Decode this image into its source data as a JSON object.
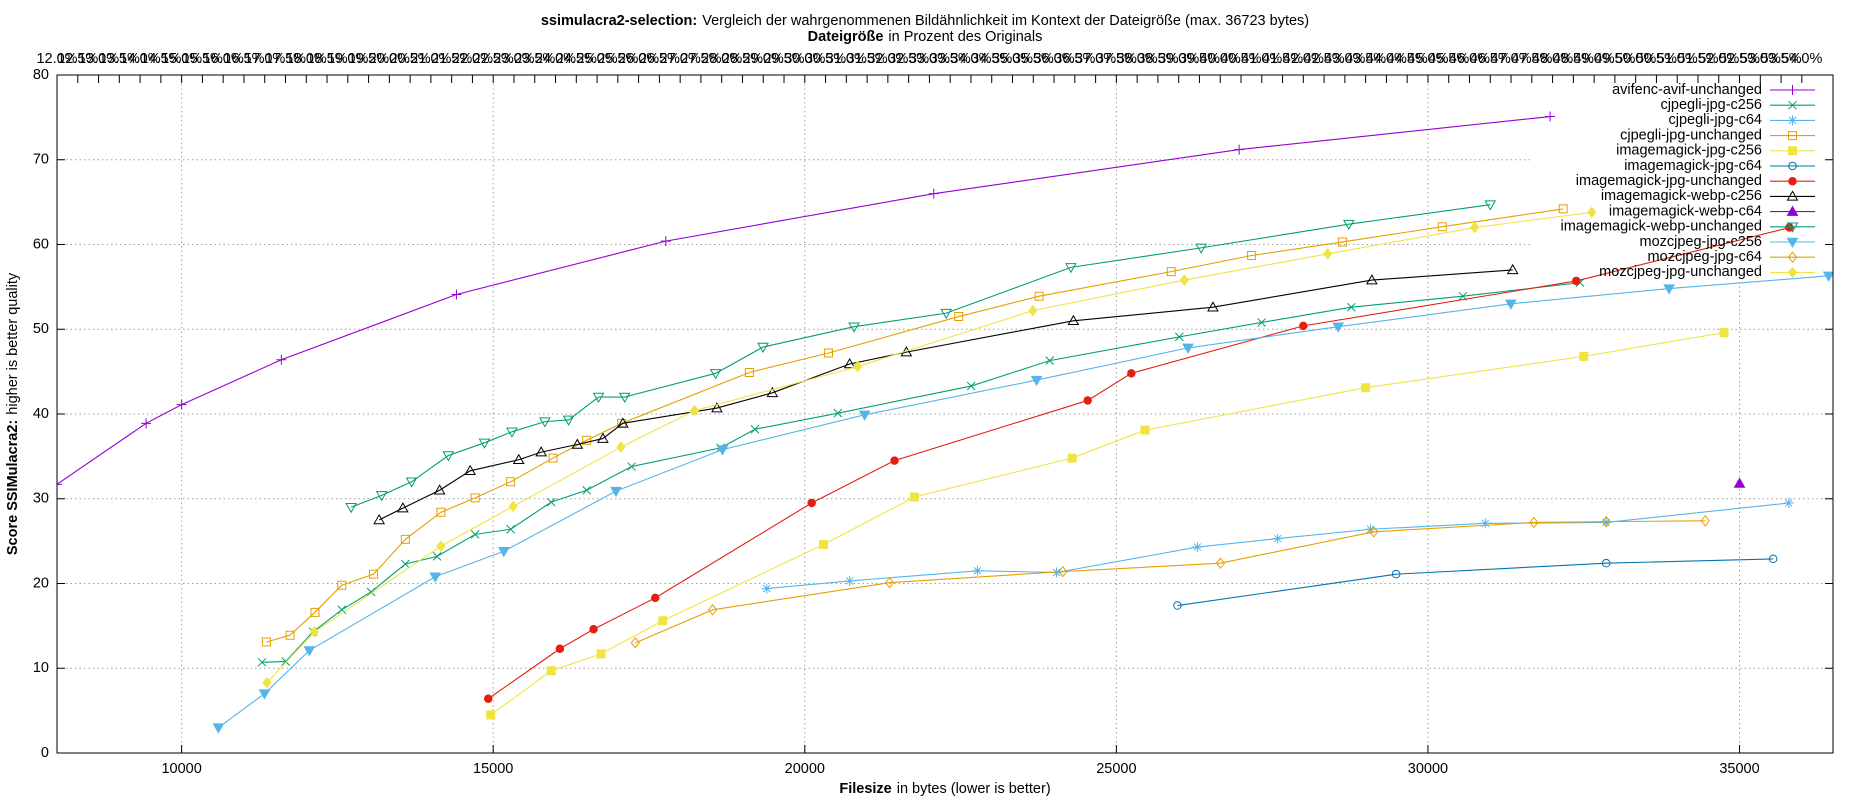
{
  "chart_data": {
    "type": "line",
    "title": {
      "bold": "ssimulacra2-selection:",
      "text": "Vergleich der wahrgenommenen Bildähnlichkeit im Kontext der Dateigröße (max. 36723 bytes)"
    },
    "x2label": {
      "bold": "Dateigröße",
      "text": "in Prozent des Originals"
    },
    "xlabel": {
      "bold": "Filesize",
      "text": "in bytes (lower is better)"
    },
    "ylabel": {
      "bold": "Score SSIMulacra2:",
      "text": "higher is better quality"
    },
    "xlim": [
      8000,
      36500
    ],
    "ylim": [
      0,
      80
    ],
    "x2lim": [
      12,
      54.75
    ],
    "xticks": [
      10000,
      15000,
      20000,
      25000,
      30000,
      35000
    ],
    "yticks": [
      0,
      10,
      20,
      30,
      40,
      50,
      60,
      70,
      80
    ],
    "x2ticks": [
      {
        "value": 12,
        "label": "12.0%"
      },
      {
        "value": 12.5,
        "label": "12.5%"
      },
      {
        "value": 13,
        "label": "13.0%"
      },
      {
        "value": 13.5,
        "label": "13.5%"
      },
      {
        "value": 14,
        "label": "14.0%"
      },
      {
        "value": 14.5,
        "label": "14.5%"
      },
      {
        "value": 15,
        "label": "15.0%"
      },
      {
        "value": 15.5,
        "label": "15.5%"
      },
      {
        "value": 16,
        "label": "16.0%"
      },
      {
        "value": 16.5,
        "label": "16.5%"
      },
      {
        "value": 17,
        "label": "17.0%"
      },
      {
        "value": 17.5,
        "label": "17.5%"
      },
      {
        "value": 18,
        "label": "18.0%"
      },
      {
        "value": 18.5,
        "label": "18.5%"
      },
      {
        "value": 19,
        "label": "19.0%"
      },
      {
        "value": 19.5,
        "label": "19.5%"
      },
      {
        "value": 20,
        "label": "20.0%"
      },
      {
        "value": 20.5,
        "label": "20.5%"
      },
      {
        "value": 21,
        "label": "21.0%"
      },
      {
        "value": 21.5,
        "label": "21.5%"
      },
      {
        "value": 22,
        "label": "22.0%"
      },
      {
        "value": 22.5,
        "label": "22.5%"
      },
      {
        "value": 23,
        "label": "23.0%"
      },
      {
        "value": 23.5,
        "label": "23.5%"
      },
      {
        "value": 24,
        "label": "24.0%"
      },
      {
        "value": 24.5,
        "label": "24.5%"
      },
      {
        "value": 25,
        "label": "25.0%"
      },
      {
        "value": 25.5,
        "label": "25.5%"
      },
      {
        "value": 26,
        "label": "26.0%"
      },
      {
        "value": 26.5,
        "label": "26.5%"
      },
      {
        "value": 27,
        "label": "27.0%"
      },
      {
        "value": 27.5,
        "label": "27.5%"
      },
      {
        "value": 28,
        "label": "28.0%"
      },
      {
        "value": 28.5,
        "label": "28.5%"
      },
      {
        "value": 29,
        "label": "29.0%"
      },
      {
        "value": 29.5,
        "label": "29.5%"
      },
      {
        "value": 30,
        "label": "30.0%"
      },
      {
        "value": 30.5,
        "label": "30.5%"
      },
      {
        "value": 31,
        "label": "31.0%"
      },
      {
        "value": 31.5,
        "label": "31.5%"
      },
      {
        "value": 32,
        "label": "32.0%"
      },
      {
        "value": 32.5,
        "label": "32.5%"
      },
      {
        "value": 33,
        "label": "33.0%"
      },
      {
        "value": 33.5,
        "label": "33.5%"
      },
      {
        "value": 34,
        "label": "34.0%"
      },
      {
        "value": 34.5,
        "label": "34.5%"
      },
      {
        "value": 35,
        "label": "35.0%"
      },
      {
        "value": 35.5,
        "label": "35.5%"
      },
      {
        "value": 36,
        "label": "36.0%"
      },
      {
        "value": 36.5,
        "label": "36.5%"
      },
      {
        "value": 37,
        "label": "37.0%"
      },
      {
        "value": 37.5,
        "label": "37.5%"
      },
      {
        "value": 38,
        "label": "38.0%"
      },
      {
        "value": 38.5,
        "label": "38.5%"
      },
      {
        "value": 39,
        "label": "39.0%"
      },
      {
        "value": 39.5,
        "label": "39.5%"
      },
      {
        "value": 40,
        "label": "40.0%"
      },
      {
        "value": 40.5,
        "label": "40.5%"
      },
      {
        "value": 41,
        "label": "41.0%"
      },
      {
        "value": 41.5,
        "label": "41.5%"
      },
      {
        "value": 42,
        "label": "42.0%"
      },
      {
        "value": 42.5,
        "label": "42.5%"
      },
      {
        "value": 43,
        "label": "43.0%"
      },
      {
        "value": 43.5,
        "label": "43.5%"
      },
      {
        "value": 44,
        "label": "44.0%"
      },
      {
        "value": 44.5,
        "label": "44.5%"
      },
      {
        "value": 45,
        "label": "45.0%"
      },
      {
        "value": 45.5,
        "label": "45.5%"
      },
      {
        "value": 46,
        "label": "46.0%"
      },
      {
        "value": 46.5,
        "label": "46.5%"
      },
      {
        "value": 47,
        "label": "47.0%"
      },
      {
        "value": 47.5,
        "label": "47.5%"
      },
      {
        "value": 48,
        "label": "48.0%"
      },
      {
        "value": 48.5,
        "label": "48.5%"
      },
      {
        "value": 49,
        "label": "49.0%"
      },
      {
        "value": 49.5,
        "label": "49.5%"
      },
      {
        "value": 50,
        "label": "50.0%"
      },
      {
        "value": 50.5,
        "label": "50.5%"
      },
      {
        "value": 51,
        "label": "51.0%"
      },
      {
        "value": 51.5,
        "label": "51.5%"
      },
      {
        "value": 52,
        "label": "52.0%"
      },
      {
        "value": 52.5,
        "label": "52.5%"
      },
      {
        "value": 53,
        "label": "53.0%"
      },
      {
        "value": 53.5,
        "label": "53.5%"
      },
      {
        "value": 54,
        "label": "54.0%"
      }
    ],
    "grid": true,
    "legend": "top-right",
    "series": [
      {
        "name": "avifenc-avif-unchanged",
        "color": "#9400d3",
        "marker": "plus",
        "x": [
          8000,
          9430,
          10000,
          11600,
          14410,
          17770,
          22070,
          26970,
          31960
        ],
        "values": [
          31.7,
          38.9,
          41.1,
          46.4,
          54.1,
          60.4,
          66.0,
          71.2,
          75.1
        ]
      },
      {
        "name": "cjpegli-jpg-c256",
        "color": "#009e73",
        "marker": "cross",
        "x": [
          11290,
          11670,
          12110,
          12570,
          13040,
          13590,
          14100,
          14710,
          15280,
          15930,
          16500,
          17220,
          18650,
          19200,
          20530,
          22670,
          23930,
          26010,
          27330,
          28770,
          30560,
          32440
        ],
        "values": [
          10.7,
          10.8,
          14.3,
          16.9,
          19.0,
          22.3,
          23.2,
          25.8,
          26.4,
          29.6,
          31.0,
          33.8,
          36.0,
          38.2,
          40.1,
          43.3,
          46.3,
          49.1,
          50.8,
          52.6,
          53.9,
          55.5
        ]
      },
      {
        "name": "cjpegli-jpg-c64",
        "color": "#56b4e9",
        "marker": "star",
        "x": [
          19390,
          20720,
          22770,
          24040,
          26300,
          27590,
          29080,
          30920,
          32860,
          35790
        ],
        "values": [
          19.4,
          20.3,
          21.5,
          21.3,
          24.3,
          25.3,
          26.4,
          27.1,
          27.2,
          29.5
        ]
      },
      {
        "name": "cjpegli-jpg-unchanged",
        "color": "#e69f00",
        "marker": "square",
        "x": [
          11360,
          11740,
          12140,
          12570,
          13080,
          13590,
          14160,
          14710,
          15280,
          15960,
          16500,
          17060,
          19110,
          20380,
          22470,
          23760,
          25880,
          27170,
          28630,
          30230,
          32170
        ],
        "values": [
          13.1,
          13.9,
          16.6,
          19.8,
          21.1,
          25.2,
          28.4,
          30.1,
          32.0,
          34.8,
          36.9,
          38.9,
          44.9,
          47.2,
          51.5,
          53.9,
          56.8,
          58.7,
          60.3,
          62.1,
          64.2
        ]
      },
      {
        "name": "imagemagick-jpg-c256",
        "color": "#f0e442",
        "marker": "filled-square",
        "x": [
          14960,
          15930,
          16730,
          17720,
          20300,
          21760,
          24290,
          25460,
          29000,
          32500,
          34750
        ],
        "values": [
          4.5,
          9.7,
          11.7,
          15.6,
          24.6,
          30.2,
          34.8,
          38.1,
          43.1,
          46.8,
          49.6
        ]
      },
      {
        "name": "imagemagick-jpg-c64",
        "color": "#0072b2",
        "marker": "circle",
        "x": [
          25980,
          29490,
          32860,
          35540
        ],
        "values": [
          17.4,
          21.1,
          22.4,
          22.9
        ]
      },
      {
        "name": "imagemagick-jpg-unchanged",
        "color": "#e51e10",
        "marker": "filled-circle",
        "x": [
          14920,
          16070,
          16610,
          17600,
          20110,
          21440,
          24540,
          25240,
          28000,
          32380,
          35800
        ],
        "values": [
          6.4,
          12.3,
          14.6,
          18.3,
          29.5,
          34.5,
          41.6,
          44.8,
          50.4,
          55.7,
          62.0
        ]
      },
      {
        "name": "imagemagick-webp-c256",
        "color": "#000000",
        "marker": "triangle",
        "x": [
          13170,
          13550,
          14140,
          14630,
          15410,
          15770,
          16350,
          16760,
          17080,
          18590,
          19480,
          20720,
          21630,
          24310,
          26550,
          29100,
          31360
        ],
        "values": [
          27.5,
          28.9,
          31.0,
          33.3,
          34.6,
          35.5,
          36.4,
          37.1,
          38.9,
          40.7,
          42.5,
          45.9,
          47.3,
          51.0,
          52.6,
          55.8,
          57.0
        ]
      },
      {
        "name": "imagemagick-webp-c64",
        "color": "#9400d3",
        "marker": "filled-triangle",
        "x": [
          35000
        ],
        "values": [
          31.8
        ]
      },
      {
        "name": "imagemagick-webp-unchanged",
        "color": "#009e73",
        "marker": "triangle-down",
        "x": [
          12720,
          13210,
          13690,
          14280,
          14860,
          15300,
          15830,
          16210,
          16690,
          17110,
          18570,
          19330,
          20790,
          22270,
          24270,
          26360,
          28730,
          31000
        ],
        "values": [
          29.0,
          30.4,
          32.0,
          35.1,
          36.6,
          37.9,
          39.1,
          39.3,
          42.0,
          42.0,
          44.8,
          47.9,
          50.3,
          51.9,
          57.3,
          59.6,
          62.4,
          64.7
        ]
      },
      {
        "name": "mozcjpeg-jpg-c256",
        "color": "#56b4e9",
        "marker": "filled-triangle-down",
        "x": [
          10590,
          11330,
          12050,
          14070,
          15170,
          16970,
          18680,
          20960,
          23720,
          26150,
          28560,
          31330,
          33870,
          36430
        ],
        "values": [
          3.0,
          7.0,
          12.1,
          20.8,
          23.8,
          30.9,
          35.8,
          39.9,
          44.0,
          47.8,
          50.3,
          53.0,
          54.8,
          56.3
        ]
      },
      {
        "name": "mozcjpeg-jpg-c64",
        "color": "#e69f00",
        "marker": "diamond",
        "x": [
          17280,
          18520,
          21360,
          24140,
          26670,
          29130,
          31700,
          32860,
          34450
        ],
        "values": [
          13.0,
          16.9,
          20.1,
          21.4,
          22.4,
          26.1,
          27.2,
          27.3,
          27.4
        ]
      },
      {
        "name": "mozcjpeg-jpg-unchanged",
        "color": "#f0e442",
        "marker": "filled-diamond",
        "x": [
          11370,
          12130,
          14160,
          15320,
          17050,
          18230,
          20850,
          23660,
          26090,
          28390,
          30750,
          32630
        ],
        "values": [
          8.3,
          14.3,
          24.4,
          29.1,
          36.1,
          40.4,
          45.6,
          52.2,
          55.8,
          58.9,
          62.0,
          63.8
        ]
      }
    ]
  }
}
